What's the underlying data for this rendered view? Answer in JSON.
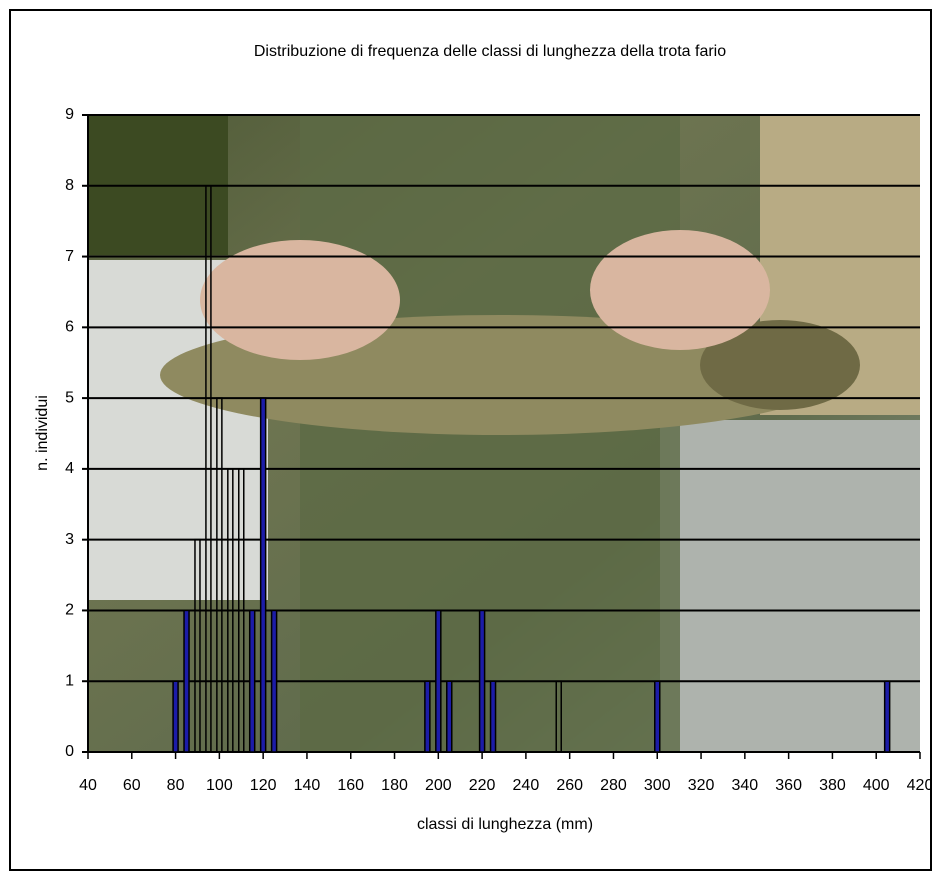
{
  "chart_data": {
    "type": "bar",
    "title": "Distribuzione di frequenza delle classi di lunghezza della trota fario",
    "x_label": "classi di lunghezza (mm)",
    "y_label": "n. individui",
    "x": [
      80,
      85,
      90,
      95,
      100,
      105,
      110,
      115,
      120,
      125,
      195,
      200,
      205,
      220,
      225,
      255,
      300,
      405
    ],
    "values": [
      1,
      2,
      3,
      8,
      5,
      4,
      4,
      2,
      5,
      2,
      1,
      2,
      1,
      2,
      1,
      1,
      1,
      1
    ],
    "colors": [
      "#1c1ca8",
      "#1c1ca8",
      "none",
      "none",
      "none",
      "none",
      "none",
      "#1c1ca8",
      "#1c1ca8",
      "#1c1ca8",
      "#1c1ca8",
      "#1c1ca8",
      "#1c1ca8",
      "#1c1ca8",
      "#1c1ca8",
      "none",
      "#1c1ca8",
      "#1c1ca8"
    ],
    "xlim": [
      40,
      420
    ],
    "xticks": [
      40,
      60,
      80,
      100,
      120,
      140,
      160,
      180,
      200,
      220,
      240,
      260,
      280,
      300,
      320,
      340,
      360,
      380,
      400,
      420
    ],
    "ylim": [
      0,
      9
    ],
    "yticks": [
      0,
      1,
      2,
      3,
      4,
      5,
      6,
      7,
      8,
      9
    ],
    "grid": true
  }
}
